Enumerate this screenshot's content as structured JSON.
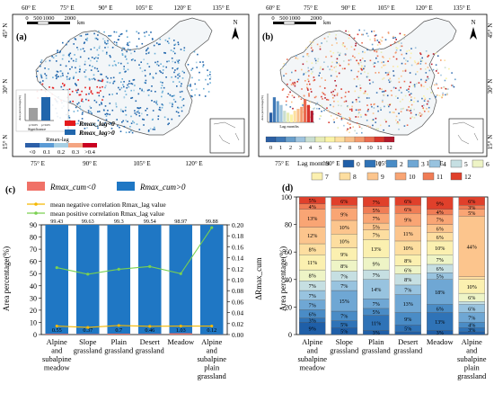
{
  "maps": [
    {
      "panel": "(a)",
      "top_lon_labels": [
        "60° E",
        "75° E",
        "90° E",
        "105° E",
        "120° E",
        "135° E"
      ],
      "bottom_lon_labels": [
        "75° E",
        "90° E",
        "105° E",
        "120° E"
      ],
      "lat_labels": [
        "45° N",
        "30° N",
        "15° N"
      ],
      "scale_labels": [
        "0",
        "500",
        "1000",
        "2000"
      ],
      "scale_unit": "km",
      "north_label": "N",
      "inset_axis_label": "Area percentage(%)",
      "inset_significance": "Significance",
      "inset_bar_labels": [
        "p<0.05",
        "p>0.05"
      ],
      "legend_items": [
        {
          "label": "Rmax_lag<0",
          "color": "#e41a1c"
        },
        {
          "label": "Rmax_lag>0",
          "color": "#2166ac"
        }
      ],
      "colorbar_title": "Rmax-lag",
      "colorbar_ticks": [
        "<0",
        "0.1",
        "0.2",
        "0.3",
        ">0.4"
      ],
      "colorbar_colors": [
        "#2c5fa8",
        "#5b9bd5",
        "#a6cee3",
        "#f4a582",
        "#ca0020"
      ]
    },
    {
      "panel": "(b)",
      "top_lon_labels": [
        "60° E",
        "75° E",
        "90° E",
        "105° E",
        "120° E",
        "135° E"
      ],
      "bottom_lon_labels": [
        "75° E",
        "90° E",
        "105° E",
        "120° E"
      ],
      "lat_labels": [
        "45° N",
        "30° N",
        "15° N"
      ],
      "scale_labels": [
        "0",
        "500",
        "1000",
        "2000"
      ],
      "scale_unit": "km",
      "north_label": "N",
      "inset_axis_label": "Area percentage(%)",
      "inset_x_label": "Lag months",
      "inset_bar_labels": [
        "0",
        "1",
        "2",
        "3",
        "4",
        "5",
        "6",
        "7",
        "8",
        "9",
        "10",
        "11",
        "12"
      ],
      "inset_values": [
        5,
        13,
        11,
        9,
        6,
        5,
        4,
        6,
        7,
        8,
        12,
        9,
        6
      ],
      "colorbar_ticks": [
        "0",
        "1",
        "2",
        "3",
        "4",
        "5",
        "6",
        "7",
        "8",
        "9",
        "10",
        "11",
        "12"
      ],
      "colorbar_colors": [
        "#2b5fa3",
        "#3f78b6",
        "#6a9fcb",
        "#9ec3dd",
        "#c9ded0",
        "#e7ecb5",
        "#fbf3a6",
        "#fde0a1",
        "#f8c08b",
        "#f39a6e",
        "#ea6b4f",
        "#d8352c",
        "#b2182b"
      ]
    }
  ],
  "chart_data": [
    {
      "panel": "(c)",
      "type": "bar",
      "categories": [
        "Alpine and subalpine meadow",
        "Slope grassland",
        "Plain grassland",
        "Desert grassland",
        "Meadow",
        "Alpine and subalpine plain grassland"
      ],
      "category_lines": [
        [
          "Alpine",
          "and",
          "subalpine",
          "meadow"
        ],
        [
          "Slope",
          "grassland"
        ],
        [
          "Plain",
          "grassland"
        ],
        [
          "Desert",
          "grassland"
        ],
        [
          "Meadow"
        ],
        [
          "Alpine",
          "and",
          "subalpine",
          "plain",
          "grassland"
        ]
      ],
      "series": [
        {
          "name": "Rmax_cum<0",
          "color": "#f07167",
          "values": [
            0.55,
            0.37,
            0.7,
            0.46,
            1.03,
            0.12
          ]
        },
        {
          "name": "Rmax_cum>0",
          "color": "#1f77c4",
          "values": [
            99.43,
            99.63,
            99.3,
            99.54,
            98.97,
            99.88
          ]
        }
      ],
      "lines": [
        {
          "name": "mean negative correlation Rmax_lag value",
          "color": "#f5b800",
          "values": [
            0.0155,
            0.013,
            0.0165,
            0.015,
            0.0155,
            0.0155
          ]
        },
        {
          "name": "mean positive correlation Rmax_lag value",
          "color": "#7ad151",
          "values": [
            0.122,
            0.11,
            0.119,
            0.124,
            0.111,
            0.195
          ]
        }
      ],
      "ylabel": "Area percentage(%)",
      "y2label": "ΔRmax_cum",
      "ylim": [
        0,
        90
      ],
      "y2lim": [
        0,
        0.2
      ],
      "yticks": [
        0,
        10,
        20,
        30,
        40,
        50,
        60,
        70,
        80,
        90
      ],
      "y2ticks": [
        "0.00",
        "0.02",
        "0.04",
        "0.06",
        "0.08",
        "0.10",
        "0.12",
        "0.14",
        "0.16",
        "0.18",
        "0.20"
      ],
      "y2tick_values": [
        0,
        0.02,
        0.04,
        0.06,
        0.08,
        0.1,
        0.12,
        0.14,
        0.16,
        0.18,
        0.2
      ]
    },
    {
      "panel": "(d)",
      "type": "bar",
      "stacked": true,
      "legend_title": "Lag months",
      "month_labels": [
        "0",
        "1",
        "2",
        "3",
        "4",
        "5",
        "6",
        "7",
        "8",
        "9",
        "10",
        "11",
        "12"
      ],
      "month_colors": [
        "#1f5fa8",
        "#2f73b7",
        "#4a8cc6",
        "#6fa7d4",
        "#98c3df",
        "#c6dfe2",
        "#eef4c6",
        "#fbf0b0",
        "#fddea0",
        "#fcc58d",
        "#f9a574",
        "#f07c55",
        "#e0402b"
      ],
      "categories": [
        "Alpine and subalpine meadow",
        "Slope grassland",
        "Plain grassland",
        "Desert grassland",
        "Meadow",
        "Alpine and subalpine plain grassland"
      ],
      "category_lines": [
        [
          "Alpine",
          "and",
          "subalpine",
          "meadow"
        ],
        [
          "Slope",
          "grassland"
        ],
        [
          "Plain",
          "grassland"
        ],
        [
          "Desert",
          "grassland"
        ],
        [
          "Meadow"
        ],
        [
          "Alpine",
          "and",
          "subalpine",
          "plain",
          "grassland"
        ]
      ],
      "stacks": [
        [
          9,
          3,
          6,
          7,
          7,
          7,
          8,
          11,
          8,
          12,
          13,
          4,
          5
        ],
        [
          5,
          5,
          7,
          15,
          7,
          7,
          8,
          9,
          10,
          10,
          9,
          2,
          6
        ],
        [
          3,
          11,
          5,
          7,
          14,
          7,
          9,
          13,
          7,
          5,
          7,
          5,
          7
        ],
        [
          2,
          5,
          9,
          13,
          7,
          8,
          6,
          8,
          10,
          11,
          9,
          6,
          6
        ],
        [
          3,
          13,
          6,
          18,
          5,
          6,
          7,
          10,
          6,
          6,
          7,
          4,
          9
        ],
        [
          2,
          3,
          4,
          7,
          6,
          2,
          6,
          10,
          2,
          44,
          5,
          3,
          6
        ]
      ],
      "labels": [
        [
          "9%",
          "3%",
          "6%",
          "7%",
          "7%",
          "7%",
          "8%",
          "11%",
          "8%",
          "12%",
          "13%",
          "4%",
          "5%"
        ],
        [
          "5%",
          "5%",
          "7%",
          "15%",
          "7%",
          "7%",
          "8%",
          "9%",
          "10%",
          "10%",
          "9%",
          "2%",
          "6%"
        ],
        [
          "3%",
          "11%",
          "5%",
          "7%",
          "14%",
          "7%",
          "9%",
          "13%",
          "7%",
          "5%",
          "7%",
          "5%",
          "7%"
        ],
        [
          "2%",
          "5%",
          "9%",
          "13%",
          "7%",
          "8%",
          "6%",
          "8%",
          "10%",
          "11%",
          "9%",
          "6%",
          "6%"
        ],
        [
          "3%",
          "13%",
          "6%",
          "18%",
          "5%",
          "6%",
          "7%",
          "10%",
          "6%",
          "6%",
          "7%",
          "4%",
          "9%"
        ],
        [
          "2%",
          "3%",
          "4%",
          "7%",
          "6%",
          "2%",
          "6%",
          "10%",
          "2%",
          "44%",
          "5%",
          "3%",
          "6%"
        ]
      ],
      "ylabel": "Area percentage(%)",
      "ylim": [
        0,
        100
      ],
      "yticks": [
        0,
        20,
        40,
        60,
        80,
        100
      ]
    }
  ]
}
